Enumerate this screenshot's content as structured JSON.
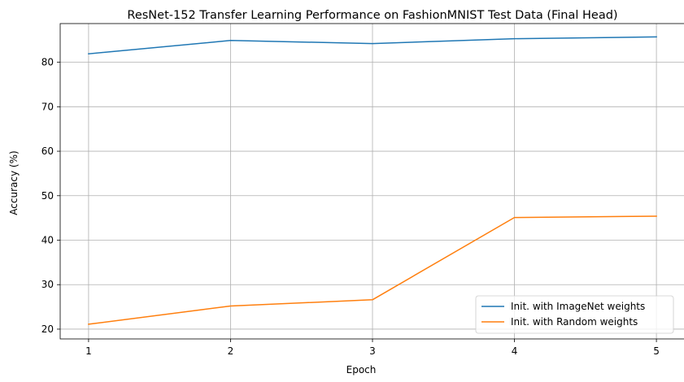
{
  "chart_data": {
    "type": "line",
    "title": "ResNet-152 Transfer Learning Performance on FashionMNIST Test Data (Final Head)",
    "xlabel": "Epoch",
    "ylabel": "Accuracy (%)",
    "x": [
      1,
      2,
      3,
      4,
      5
    ],
    "x_ticks": [
      "1",
      "2",
      "3",
      "4",
      "5"
    ],
    "y_ticks": [
      20,
      30,
      40,
      50,
      60,
      70,
      80
    ],
    "xlim": [
      0.8,
      5.2
    ],
    "ylim": [
      17.8,
      88.7
    ],
    "grid": true,
    "legend_position": "lower-right",
    "series": [
      {
        "name": "Init. with ImageNet weights",
        "color": "#1f77b4",
        "values": [
          81.9,
          84.9,
          84.2,
          85.3,
          85.7
        ]
      },
      {
        "name": "Init. with Random weights",
        "color": "#ff7f0e",
        "values": [
          21.1,
          25.2,
          26.6,
          45.1,
          45.4
        ]
      }
    ]
  }
}
